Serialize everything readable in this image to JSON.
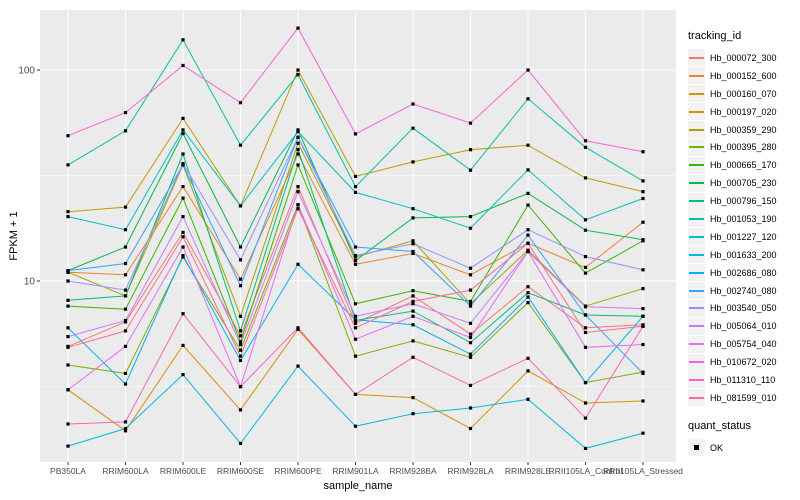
{
  "chart_data": {
    "type": "line",
    "title": "",
    "xlabel": "sample_name",
    "ylabel": "FPKM + 1",
    "y_scale": "log10",
    "y_ticks": [
      100,
      10
    ],
    "y_minor_breaks": [
      31.623,
      3.1623
    ],
    "ylim": [
      1.4,
      192
    ],
    "grid": "on",
    "panel_bg": "#EBEBEB",
    "grid_color": "#FFFFFF",
    "point_shape": "filled-square",
    "point_color": "#000000",
    "legend_position": "right",
    "legend_title": "tracking_id",
    "quant_legend": {
      "title": "quant_status",
      "items": [
        {
          "label": "OK",
          "shape": "filled-square",
          "color": "#000000"
        }
      ]
    },
    "categories": [
      "PB350LA",
      "RRIM600LA",
      "RRIM600LE",
      "RRIM600SE",
      "RRIM600PE",
      "RRIM901LA",
      "RRIM928BA",
      "RRIM928LA",
      "RRIM928LE",
      "RRII105LA_Control",
      "RRII105LA_Stressed"
    ],
    "series": [
      {
        "name": "Hb_000072_300",
        "color": "#F8766D",
        "values": [
          4.9,
          6.4,
          17,
          5.5,
          28,
          6.3,
          8.5,
          5.6,
          9.4,
          6.0,
          6.2
        ]
      },
      {
        "name": "Hb_000152_600",
        "color": "#EA8331",
        "values": [
          11.0,
          10.7,
          28,
          10.2,
          40,
          12.0,
          13.5,
          10.7,
          15.1,
          11.6,
          19.0
        ]
      },
      {
        "name": "Hb_000160_070",
        "color": "#D89000",
        "values": [
          3.05,
          1.95,
          4.95,
          2.45,
          5.9,
          2.9,
          2.8,
          2.0,
          3.75,
          2.64,
          2.7
        ]
      },
      {
        "name": "Hb_000197_020",
        "color": "#C09B00",
        "values": [
          21.3,
          22.4,
          59,
          22.7,
          100,
          31.3,
          36.7,
          41.9,
          44,
          30.8,
          26.5
        ]
      },
      {
        "name": "Hb_000359_290",
        "color": "#A3A500",
        "values": [
          11.0,
          8.5,
          35.5,
          6.8,
          45,
          13.0,
          15.5,
          7.8,
          14.0,
          7.6,
          9.2
        ]
      },
      {
        "name": "Hb_000395_280",
        "color": "#7CAE00",
        "values": [
          4.0,
          3.65,
          13.0,
          4.7,
          23,
          4.4,
          5.2,
          4.35,
          7.9,
          3.3,
          3.7
        ]
      },
      {
        "name": "Hb_000665_170",
        "color": "#39B600",
        "values": [
          7.6,
          7.35,
          24.7,
          5.15,
          35.5,
          7.8,
          9.0,
          8.0,
          22.9,
          10.9,
          15.5
        ]
      },
      {
        "name": "Hb_000705_230",
        "color": "#00BB4E",
        "values": [
          11.2,
          14.5,
          50,
          14.5,
          52,
          12.5,
          19.9,
          20.2,
          26,
          17.4,
          15.7
        ]
      },
      {
        "name": "Hb_000796_150",
        "color": "#00BF7D",
        "values": [
          8.1,
          8.5,
          40,
          5.8,
          42,
          6.5,
          7.2,
          5.1,
          8.8,
          6.9,
          6.8
        ]
      },
      {
        "name": "Hb_001053_190",
        "color": "#00C1A3",
        "values": [
          35.5,
          51.5,
          139,
          44,
          95,
          28,
          53,
          33.5,
          73,
          43,
          29.8
        ]
      },
      {
        "name": "Hb_001227_120",
        "color": "#00BFC4",
        "values": [
          20.2,
          17.5,
          52,
          22.7,
          51,
          26.3,
          22,
          17.8,
          33.6,
          19.5,
          24.6
        ]
      },
      {
        "name": "Hb_001633_200",
        "color": "#00BAE0",
        "values": [
          1.65,
          2.0,
          3.6,
          1.7,
          3.95,
          2.05,
          2.35,
          2.5,
          2.75,
          1.61,
          1.9
        ]
      },
      {
        "name": "Hb_002686_080",
        "color": "#00B0F6",
        "values": [
          6.0,
          3.25,
          13.2,
          4.2,
          12.0,
          6.55,
          6.2,
          4.5,
          8.4,
          3.3,
          6.8
        ]
      },
      {
        "name": "Hb_002740_080",
        "color": "#35A2FF",
        "values": [
          11.2,
          12.1,
          35.5,
          9.5,
          48,
          14.5,
          13.8,
          7.6,
          16.5,
          6.9,
          3.65
        ]
      },
      {
        "name": "Hb_003540_050",
        "color": "#9590FF",
        "values": [
          10.0,
          9.05,
          36,
          12.6,
          48,
          13.2,
          15.0,
          11.5,
          17.5,
          13.05,
          11.3
        ]
      },
      {
        "name": "Hb_005064_010",
        "color": "#C77CFF",
        "values": [
          5.45,
          6.5,
          20.2,
          5.0,
          26.5,
          6.8,
          7.8,
          6.3,
          13.8,
          7.55,
          7.4
        ]
      },
      {
        "name": "Hb_005754_040",
        "color": "#E76BF3",
        "values": [
          3.05,
          4.9,
          14.5,
          3.16,
          23,
          5.3,
          6.8,
          5.4,
          13.8,
          4.85,
          5.0
        ]
      },
      {
        "name": "Hb_010672_020",
        "color": "#FA62DB",
        "values": [
          48.8,
          62.8,
          105,
          70,
          158,
          49.8,
          69,
          56,
          100,
          46.2,
          41
        ]
      },
      {
        "name": "Hb_011310_110",
        "color": "#FF62BC",
        "values": [
          2.1,
          2.15,
          7.0,
          3.16,
          6.0,
          2.9,
          4.35,
          3.2,
          4.3,
          2.24,
          6.1
        ]
      },
      {
        "name": "Hb_081599_010",
        "color": "#FF6A98",
        "values": [
          4.85,
          5.8,
          16.2,
          4.4,
          22,
          6.0,
          8.0,
          9.05,
          15.1,
          5.7,
          6.1
        ]
      }
    ]
  }
}
